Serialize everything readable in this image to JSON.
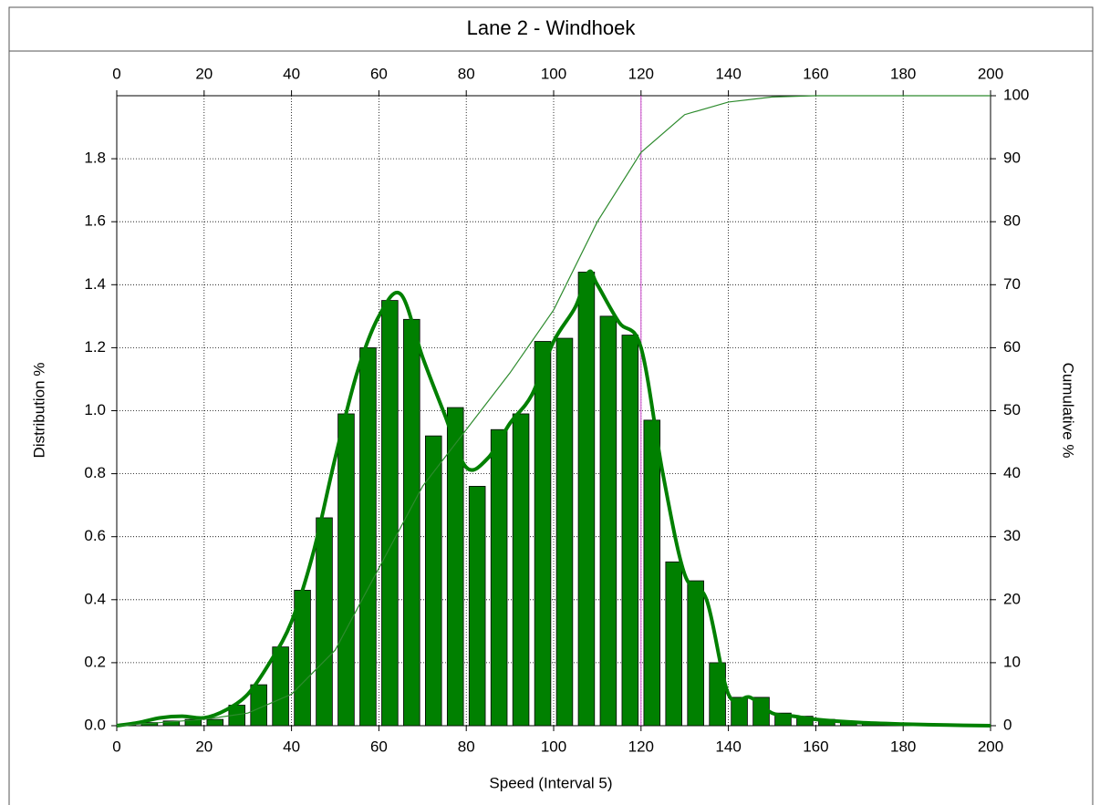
{
  "chart_data": {
    "type": "histogram",
    "title": "Lane 2 - Windhoek",
    "x_label": "Speed (Interval 5)",
    "y_label": "Distribution %",
    "y2_label": "Cumulative %",
    "bins": [
      0,
      5,
      10,
      15,
      20,
      25,
      30,
      35,
      40,
      45,
      50,
      55,
      60,
      65,
      70,
      75,
      80,
      85,
      90,
      95,
      100,
      105,
      110,
      115,
      120,
      125,
      130,
      135,
      140,
      145,
      150,
      155,
      160,
      165,
      170,
      175,
      180,
      185,
      190,
      195,
      200
    ],
    "values": [
      0.005,
      0.01,
      0.015,
      0.02,
      0.02,
      0.065,
      0.13,
      0.25,
      0.43,
      0.66,
      0.99,
      1.2,
      1.35,
      1.29,
      0.92,
      1.01,
      0.76,
      0.94,
      0.99,
      1.22,
      1.23,
      1.44,
      1.3,
      1.24,
      0.97,
      0.52,
      0.46,
      0.2,
      0.09,
      0.09,
      0.04,
      0.03,
      0.02,
      0.01,
      0.01,
      0.005,
      0.003,
      0.003,
      0.003,
      0.003
    ],
    "color": "#008000",
    "xlim": [
      0,
      200
    ],
    "xticks": [
      0,
      20,
      40,
      60,
      80,
      100,
      120,
      140,
      160,
      180,
      200
    ],
    "ylim": [
      0,
      2.0
    ],
    "yticks": [
      {
        "value": 0,
        "label": "0.0"
      },
      0.2,
      0.4,
      0.6,
      0.8,
      {
        "value": 1,
        "label": "1.0"
      },
      1.2,
      1.4,
      1.6,
      1.8
    ],
    "y2lim": [
      0,
      100
    ],
    "y2ticks": [
      0,
      10,
      20,
      30,
      40,
      50,
      60,
      70,
      80,
      90,
      100
    ],
    "grid": true,
    "lines": [
      {
        "x": [
          0,
          5,
          10,
          15,
          20,
          25,
          30,
          35,
          40,
          45,
          50,
          55,
          60,
          65,
          70,
          75,
          80,
          85,
          90,
          95,
          100,
          105,
          108,
          110,
          115,
          120,
          125,
          130,
          135,
          140,
          145,
          150,
          155,
          160,
          170,
          180,
          190,
          200
        ],
        "values": [
          0,
          0.01,
          0.025,
          0.03,
          0.025,
          0.05,
          0.1,
          0.2,
          0.33,
          0.55,
          0.85,
          1.12,
          1.3,
          1.37,
          1.17,
          0.99,
          0.82,
          0.85,
          0.96,
          1.05,
          1.22,
          1.33,
          1.44,
          1.4,
          1.28,
          1.2,
          0.8,
          0.48,
          0.4,
          0.1,
          0.09,
          0.04,
          0.03,
          0.02,
          0.01,
          0.005,
          0.002,
          0
        ],
        "color": "#008000",
        "smooth": true
      },
      {
        "x": [
          0,
          10,
          20,
          30,
          40,
          50,
          60,
          70,
          80,
          90,
          100,
          110,
          120,
          130,
          140,
          150,
          160,
          200
        ],
        "values": [
          0,
          0.5,
          1,
          2,
          5,
          12,
          25,
          38,
          47,
          56,
          66,
          80,
          91,
          97,
          99,
          99.8,
          100,
          100
        ],
        "color": "#2e8b2e",
        "axis": "y2"
      }
    ],
    "marker_line": {
      "x": 120,
      "color": "#cc44cc"
    }
  }
}
